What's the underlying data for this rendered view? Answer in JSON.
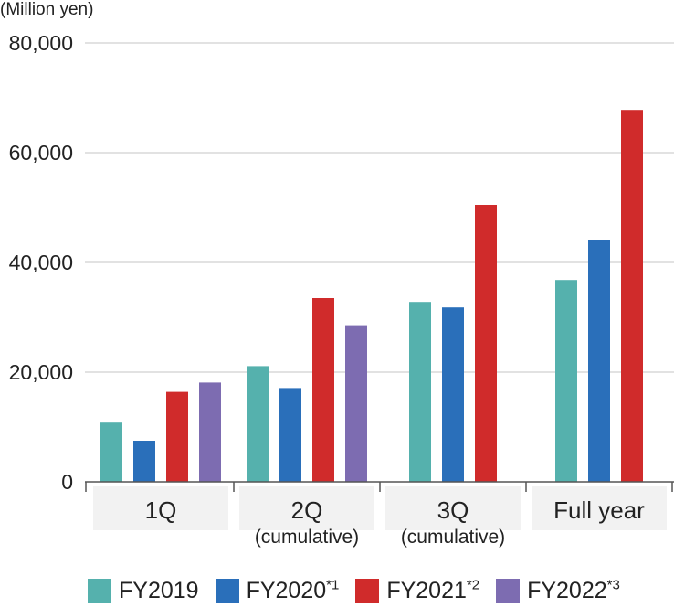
{
  "chart_data": {
    "type": "bar",
    "unit_label": "(Million yen)",
    "categories": [
      {
        "label": "1Q",
        "sub": ""
      },
      {
        "label": "2Q",
        "sub": "(cumulative)"
      },
      {
        "label": "3Q",
        "sub": "(cumulative)"
      },
      {
        "label": "Full year",
        "sub": ""
      }
    ],
    "series": [
      {
        "name": "FY2019",
        "note": "",
        "color": "#55b1ad",
        "values": [
          10800,
          21100,
          32800,
          36800
        ]
      },
      {
        "name": "FY2020",
        "note": "*1",
        "color": "#2a6fba",
        "values": [
          7500,
          17100,
          31800,
          44100
        ]
      },
      {
        "name": "FY2021",
        "note": "*2",
        "color": "#d02b2b",
        "values": [
          16400,
          33500,
          50500,
          67800
        ]
      },
      {
        "name": "FY2022",
        "note": "*3",
        "color": "#7d6cb1",
        "values": [
          18100,
          28400,
          null,
          null
        ]
      }
    ],
    "yticks": [
      "0",
      "20,000",
      "40,000",
      "60,000",
      "80,000"
    ],
    "ylim": [
      0,
      80000
    ],
    "grid": true,
    "legend_position": "bottom"
  }
}
